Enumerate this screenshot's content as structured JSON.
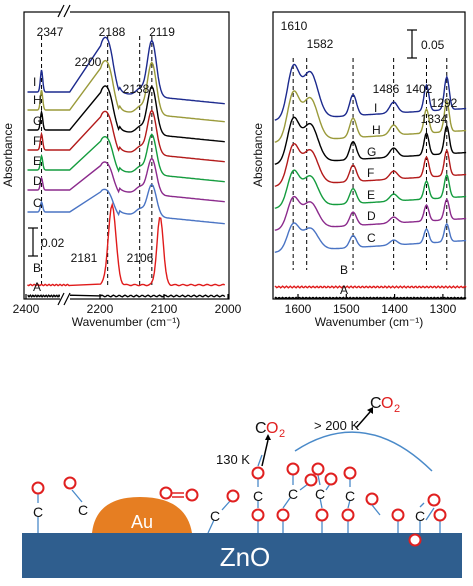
{
  "chart_data": [
    {
      "type": "line",
      "panel": "left",
      "ylabel": "Absorbance",
      "xlabel": "Wavenumber (cm⁻¹)",
      "xlim": [
        2000,
        2400
      ],
      "axis_break": true,
      "x_ticks": [
        "2400",
        "2200",
        "2100",
        "2000"
      ],
      "scale_bar_label": "0.02",
      "vline_positions": [
        2347,
        2188,
        2138,
        2119
      ],
      "peak_labels": [
        {
          "text": "2347",
          "x": 2347
        },
        {
          "text": "2188",
          "x": 2188
        },
        {
          "text": "2119",
          "x": 2119
        },
        {
          "text": "2200",
          "x": 2200
        },
        {
          "text": "2138",
          "x": 2138
        },
        {
          "text": "2181",
          "x": 2181
        },
        {
          "text": "2106",
          "x": 2106
        }
      ],
      "series": [
        {
          "name": "A",
          "color": "#000000"
        },
        {
          "name": "B",
          "color": "#e01b1b"
        },
        {
          "name": "C",
          "color": "#4a74c4"
        },
        {
          "name": "D",
          "color": "#8b2a8c"
        },
        {
          "name": "E",
          "color": "#149c3e"
        },
        {
          "name": "F",
          "color": "#b31a1a"
        },
        {
          "name": "G",
          "color": "#000000"
        },
        {
          "name": "H",
          "color": "#9a9a3a"
        },
        {
          "name": "I",
          "color": "#1c2a8e"
        }
      ]
    },
    {
      "type": "line",
      "panel": "right",
      "ylabel": "Absorbance",
      "xlabel": "Wavenumber (cm⁻¹)",
      "xlim": [
        1250,
        1650
      ],
      "x_ticks": [
        "1600",
        "1500",
        "1400",
        "1300"
      ],
      "scale_bar_label": "0.05",
      "vline_positions": [
        1610,
        1582,
        1486,
        1402,
        1334,
        1292
      ],
      "peak_labels": [
        {
          "text": "1610",
          "x": 1610
        },
        {
          "text": "1582",
          "x": 1582
        },
        {
          "text": "1486",
          "x": 1486
        },
        {
          "text": "1402",
          "x": 1402
        },
        {
          "text": "1334",
          "x": 1334
        },
        {
          "text": "1292",
          "x": 1292
        }
      ],
      "series": [
        {
          "name": "A",
          "color": "#000000"
        },
        {
          "name": "B",
          "color": "#e01b1b"
        },
        {
          "name": "C",
          "color": "#4a74c4"
        },
        {
          "name": "D",
          "color": "#8b2a8c"
        },
        {
          "name": "E",
          "color": "#149c3e"
        },
        {
          "name": "F",
          "color": "#b31a1a"
        },
        {
          "name": "G",
          "color": "#000000"
        },
        {
          "name": "H",
          "color": "#9a9a3a"
        },
        {
          "name": "I",
          "color": "#1c2a8e"
        }
      ]
    }
  ],
  "schematic": {
    "substrate_label": "ZnO",
    "particle_label": "Au",
    "co2_text_c": "C",
    "co2_text_o": "O",
    "co2_subscript": "2",
    "temp_low": "130 K",
    "temp_high": "> 200 K",
    "atom_c": "C",
    "atom_o": "O",
    "substrate_color": "#2f5e8e",
    "particle_color": "#e67e22",
    "oxygen_color": "#e02020"
  }
}
